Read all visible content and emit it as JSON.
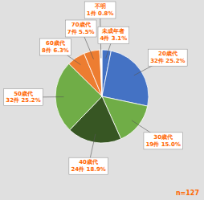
{
  "chart_data": {
    "type": "pie",
    "categories": [
      "未成年者",
      "20歳代",
      "30歳代",
      "40歳代",
      "50歳代",
      "60歳代",
      "70歳代",
      "不明"
    ],
    "values": [
      4,
      32,
      19,
      24,
      32,
      8,
      7,
      1
    ],
    "value_labels": [
      "4件 3.1%",
      "32件 25.2%",
      "19件 15.0%",
      "24件 18.9%",
      "32件 25.2%",
      "8件 6.3%",
      "7件 5.5%",
      "1件 0.8%"
    ],
    "colors": [
      "#4472C4",
      "#4472C4",
      "#70AD47",
      "#375623",
      "#70AD47",
      "#ED7D31",
      "#ED7D31",
      "#FFFFFF"
    ],
    "data_labels": true,
    "annotation": "n=127"
  }
}
